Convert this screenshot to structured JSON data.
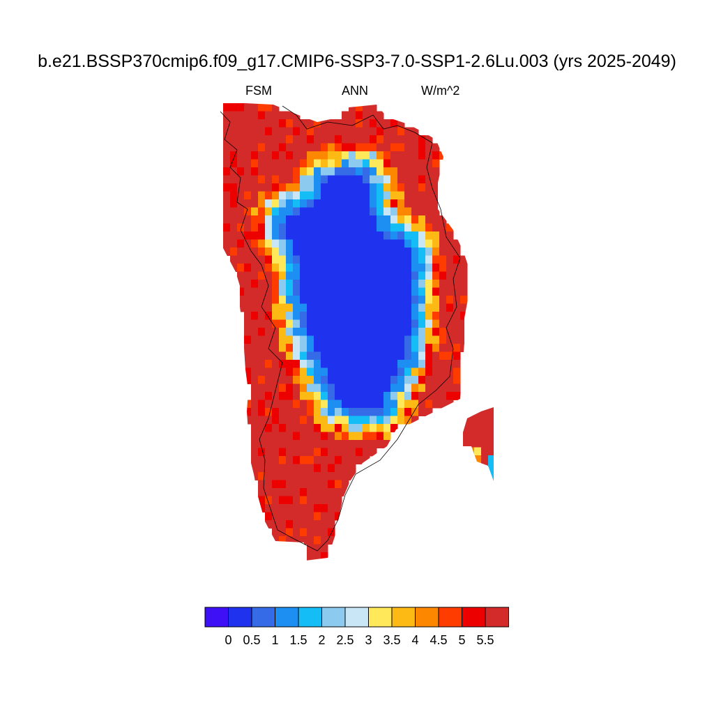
{
  "figure": {
    "title": "b.e21.BSSP370cmip6.f09_g17.CMIP6-SSP3-7.0-SSP1-2.6Lu.003 (yrs 2025-2049)",
    "left_label": "FSM",
    "center_label": "ANN",
    "right_label": "W/m^2"
  },
  "map": {
    "region": "Greenland",
    "field": "FSM",
    "units": "W/m^2"
  },
  "colorbar": {
    "colors": [
      "#3d10f5",
      "#1f33ef",
      "#366be8",
      "#1d8ef2",
      "#15bdf6",
      "#8ccbef",
      "#c9e6f7",
      "#ffe85a",
      "#fdb914",
      "#fd8800",
      "#fe3c00",
      "#ec0000",
      "#d32a2a"
    ],
    "labels": [
      "0",
      "0.5",
      "1",
      "1.5",
      "2",
      "2.5",
      "3",
      "3.5",
      "4",
      "4.5",
      "5",
      "5.5"
    ]
  }
}
